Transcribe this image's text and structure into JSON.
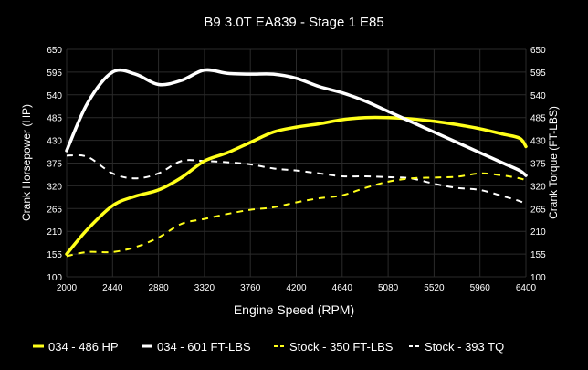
{
  "chart_data": {
    "type": "line",
    "title": "B9 3.0T EA839 - Stage 1 E85",
    "xlabel": "Engine Speed (RPM)",
    "ylabel": "Crank Horsepower (HP)",
    "y2label": "Crank Torque (FT-LBS)",
    "xlim": [
      2000,
      6400
    ],
    "ylim": [
      100,
      650
    ],
    "y2lim": [
      100,
      650
    ],
    "xticks": [
      2000,
      2440,
      2880,
      3320,
      3760,
      4200,
      4640,
      5080,
      5520,
      5960,
      6400
    ],
    "yticks": [
      100,
      155,
      210,
      265,
      320,
      375,
      430,
      485,
      540,
      595,
      650
    ],
    "grid": true,
    "legend_position": "bottom",
    "x": [
      2000,
      2200,
      2440,
      2660,
      2880,
      3100,
      3320,
      3540,
      3760,
      3980,
      4200,
      4420,
      4640,
      4860,
      5080,
      5300,
      5520,
      5740,
      5960,
      6180,
      6340,
      6400
    ],
    "series": [
      {
        "name": "034 - 486 HP",
        "color": "#ffff1a",
        "dashed": false,
        "values": [
          155,
          215,
          272,
          295,
          310,
          340,
          380,
          400,
          425,
          450,
          462,
          470,
          480,
          485,
          485,
          482,
          476,
          468,
          458,
          445,
          435,
          415
        ]
      },
      {
        "name": "034 - 601 FT-LBS",
        "color": "#ffffff",
        "dashed": false,
        "values": [
          405,
          520,
          595,
          590,
          565,
          575,
          600,
          592,
          590,
          590,
          580,
          560,
          545,
          525,
          500,
          475,
          450,
          425,
          400,
          375,
          357,
          345
        ]
      },
      {
        "name": "Stock - 350 FT-LBS",
        "color": "#ffff1a",
        "dashed": true,
        "values": [
          150,
          160,
          160,
          172,
          195,
          228,
          240,
          252,
          262,
          268,
          280,
          290,
          297,
          315,
          330,
          338,
          340,
          342,
          350,
          345,
          338,
          333
        ]
      },
      {
        "name": "Stock - 393 TQ",
        "color": "#ffffff",
        "dashed": true,
        "values": [
          393,
          390,
          350,
          338,
          350,
          380,
          380,
          377,
          372,
          362,
          357,
          350,
          343,
          343,
          341,
          338,
          325,
          315,
          310,
          295,
          283,
          275
        ]
      }
    ]
  }
}
